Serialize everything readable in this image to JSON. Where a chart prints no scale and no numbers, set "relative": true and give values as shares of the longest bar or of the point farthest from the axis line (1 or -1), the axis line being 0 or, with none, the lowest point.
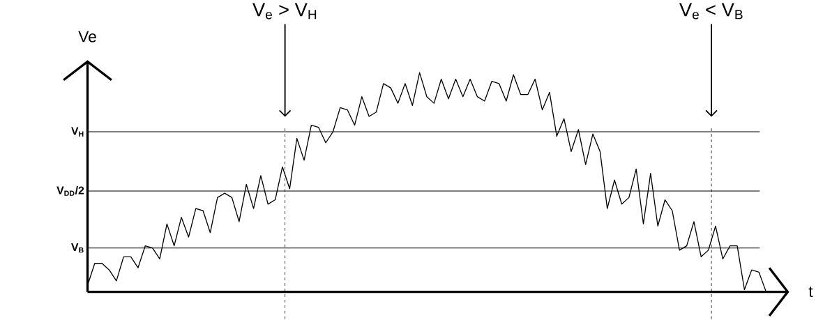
{
  "chart_data": {
    "type": "line",
    "relative": true,
    "xlabel": "t",
    "ylabel": "Ve",
    "tick_labels": false,
    "categories": [
      null,
      null,
      null,
      null,
      null,
      null,
      null,
      null,
      null,
      null,
      null,
      null,
      null,
      null,
      null,
      null,
      null,
      null,
      null,
      null,
      null,
      null,
      null,
      null,
      null,
      null,
      null,
      null,
      null,
      null,
      null,
      null,
      null,
      null,
      null,
      null,
      null,
      null,
      null,
      null,
      null,
      null,
      null,
      null,
      null,
      null,
      null,
      null,
      null,
      null,
      null,
      null,
      null,
      null,
      null,
      null,
      null,
      null,
      null,
      null,
      null,
      null,
      null,
      null,
      null,
      null,
      null,
      null,
      null,
      null,
      null,
      null,
      null,
      null,
      null,
      null,
      null,
      null,
      null,
      null,
      null,
      null,
      null,
      null,
      null,
      null,
      null,
      null,
      null,
      null,
      null,
      null,
      null,
      null,
      null
    ],
    "series": [
      {
        "color": "#000000",
        "values": [
          0.03,
          0.13,
          0.13,
          0.1,
          0.05,
          0.16,
          0.16,
          0.11,
          0.21,
          0.2,
          0.15,
          0.31,
          0.21,
          0.34,
          0.25,
          0.38,
          0.37,
          0.27,
          0.43,
          0.45,
          0.43,
          0.32,
          0.49,
          0.38,
          0.53,
          0.4,
          0.42,
          0.57,
          0.47,
          0.7,
          0.6,
          0.76,
          0.75,
          0.68,
          0.73,
          0.84,
          0.83,
          0.76,
          0.89,
          0.8,
          0.82,
          0.95,
          0.93,
          0.86,
          0.95,
          0.85,
          1,
          0.89,
          0.86,
          0.97,
          0.88,
          0.97,
          0.89,
          0.97,
          0.89,
          0.87,
          0.96,
          0.95,
          0.87,
          0.99,
          0.9,
          0.9,
          0.97,
          0.83,
          0.91,
          0.71,
          0.79,
          0.64,
          0.74,
          0.58,
          0.72,
          0.64,
          0.38,
          0.51,
          0.4,
          0.43,
          0.56,
          0.31,
          0.54,
          0.3,
          0.42,
          0.37,
          0.19,
          0.21,
          0.32,
          0.16,
          0.19,
          0.3,
          0.15,
          0.21,
          0.21,
          0.01,
          0.1,
          0.09,
          0
        ]
      }
    ],
    "ref_lines": [
      {
        "axis": "y",
        "value": 0.73,
        "label": "V$_{H}$"
      },
      {
        "axis": "y",
        "value": 0.46,
        "label": "V$_{DD}$/2"
      },
      {
        "axis": "y",
        "value": 0.2,
        "label": "V$_{B}$"
      }
    ],
    "annotations": [
      "V$_{e}$ > V$_{H}$",
      "V$_{e}$ < V$_{B}$"
    ]
  }
}
